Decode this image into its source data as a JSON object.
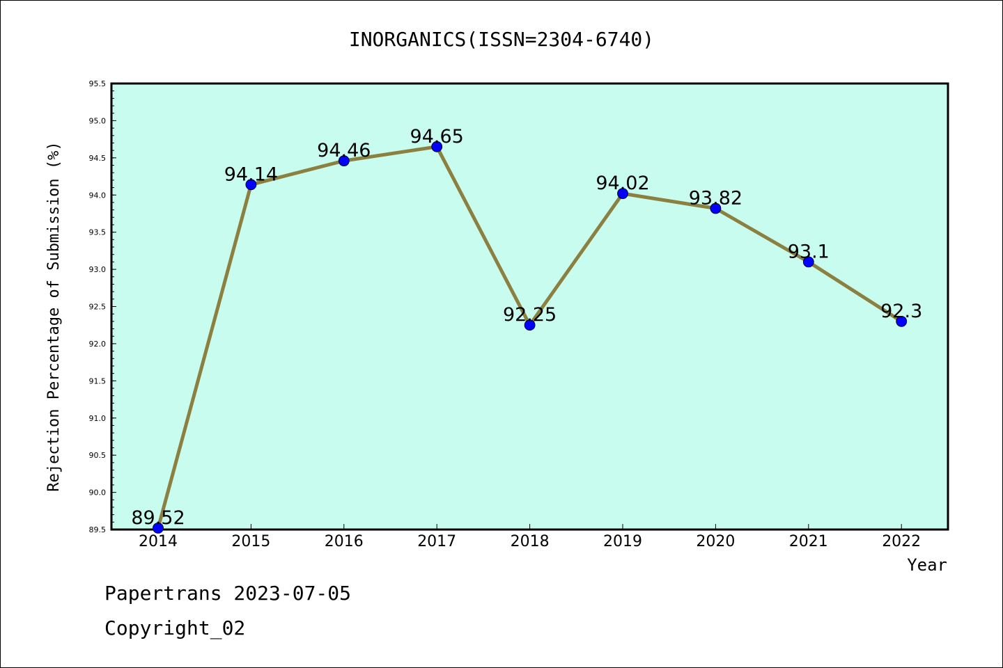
{
  "chart_data": {
    "type": "line",
    "title": "INORGANICS(ISSN=2304-6740)",
    "xlabel": "Year",
    "ylabel": "Rejection Percentage of Submission (%)",
    "categories": [
      "2014",
      "2015",
      "2016",
      "2017",
      "2018",
      "2019",
      "2020",
      "2021",
      "2022"
    ],
    "series": [
      {
        "values": [
          89.52,
          94.14,
          94.46,
          94.65,
          92.25,
          94.02,
          93.82,
          93.1,
          92.3
        ],
        "labels": [
          "89.52",
          "94.14",
          "94.46",
          "94.65",
          "92.25",
          "94.02",
          "93.82",
          "93.1",
          "92.3"
        ]
      }
    ],
    "ylim": [
      89.5,
      95.5
    ],
    "yticks": [
      "89.5",
      "90.0",
      "90.5",
      "91.0",
      "91.5",
      "92.0",
      "92.5",
      "93.0",
      "93.5",
      "94.0",
      "94.5",
      "95.0",
      "95.5"
    ],
    "grid": false,
    "colors": {
      "plot_background": "#c8fcee",
      "line": "#8b8040",
      "marker": "#0000ff",
      "axes": "#000000"
    }
  },
  "footer": {
    "line1": "Papertrans 2023-07-05",
    "line2": "Copyright_02"
  }
}
